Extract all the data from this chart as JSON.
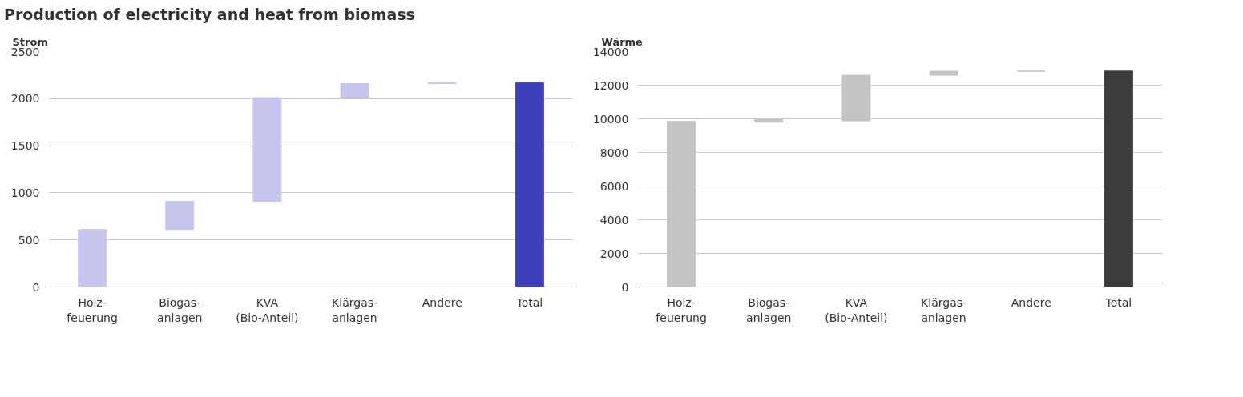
{
  "chart_data": [
    {
      "type": "bar",
      "title": "Production of electricity and heat from biomass",
      "subtitle": "Strom",
      "categories": [
        "Holz-\nfeuerung",
        "Biogas-\nanlagen",
        "KVA\n(Bio-Anteil)",
        "Klärgas-\nanlagen",
        "Andere",
        "Total"
      ],
      "values": [
        610,
        300,
        1100,
        150,
        10,
        2170
      ],
      "base": [
        0,
        610,
        910,
        2010,
        2160,
        0
      ],
      "colors": [
        "#c5c5ee",
        "#c5c5ee",
        "#c5c5ee",
        "#c5c5ee",
        "#c5c5ee",
        "#3f3fbb"
      ],
      "ylim": [
        0,
        2500
      ],
      "yticks": [
        0,
        500,
        1000,
        1500,
        2000,
        2500
      ],
      "grid": "y"
    },
    {
      "type": "bar",
      "subtitle": "Wärme",
      "categories": [
        "Holz-\nfeuerung",
        "Biogas-\nanlagen",
        "KVA\n(Bio-Anteil)",
        "Klärgas-\nanlagen",
        "Andere",
        "Total"
      ],
      "values": [
        9850,
        190,
        2710,
        240,
        10,
        12840
      ],
      "base": [
        0,
        9800,
        9880,
        12590,
        12830,
        0
      ],
      "colors": [
        "#c4c4c4",
        "#c4c4c4",
        "#c4c4c4",
        "#c4c4c4",
        "#c4c4c4",
        "#3c3c3c"
      ],
      "ylim": [
        0,
        14000
      ],
      "yticks": [
        0,
        2000,
        4000,
        6000,
        8000,
        10000,
        12000,
        14000
      ],
      "grid": "y"
    }
  ]
}
